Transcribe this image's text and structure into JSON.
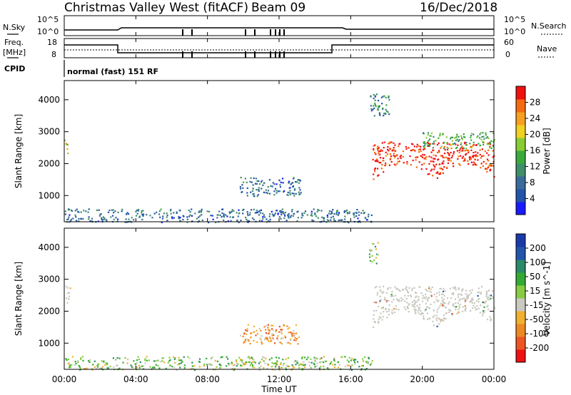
{
  "header": {
    "title": "Christmas Valley West (fitACF)",
    "beam": "Beam 09",
    "date": "16/Dec/2018"
  },
  "strip": {
    "nsky_label": "N.Sky",
    "nsky_tick_top": "10^5",
    "nsky_tick_bottom": "10^0",
    "nsearch_label": "N.Search",
    "nsearch_tick_top": "10^5",
    "nsearch_tick_bottom": "10^0",
    "freq_label_line1": "Freq.",
    "freq_label_line2": "[MHz]",
    "freq_tick_top": "18",
    "freq_tick_bottom": "8",
    "nave_label": "Nave",
    "nave_tick_top": "60",
    "nave_tick_bottom": "0",
    "cpid_label": "CPID",
    "cpid_text": "normal (fast) 151 RF"
  },
  "time_axis": {
    "label": "Time UT",
    "ticks": [
      "00:00",
      "04:00",
      "08:00",
      "12:00",
      "16:00",
      "20:00",
      "00:00"
    ]
  },
  "colors": {
    "power": [
      "#1a1aff",
      "#2255aa",
      "#3a6b9a",
      "#3f8f6a",
      "#3aaa3a",
      "#88cc33",
      "#f0d020",
      "#f7a020",
      "#f56a10",
      "#f01010"
    ],
    "velocity": [
      "#ee1111",
      "#ee5522",
      "#ee8822",
      "#f0b030",
      "#c9c9c0",
      "#88cc44",
      "#33aa33",
      "#2a8a6a",
      "#2255aa",
      "#1a3aaa"
    ]
  },
  "chart_data": [
    {
      "type": "heatmap",
      "name": "power",
      "xlabel": "",
      "ylabel": "Slant Range [km]",
      "ylim": [
        180,
        4600
      ],
      "yticks": [
        "1000",
        "2000",
        "3000",
        "4000"
      ],
      "colorbar_label": "Power [dB]",
      "colorbar_ticks": [
        "4",
        "8",
        "12",
        "16",
        "20",
        "24",
        "28"
      ],
      "x_range_hours": [
        0,
        24
      ],
      "regions": [
        {
          "t": [
            0,
            0.2
          ],
          "r": [
            2200,
            2800
          ],
          "value_db": 18
        },
        {
          "t": [
            0,
            17.2
          ],
          "r": [
            180,
            600
          ],
          "value_db": 6
        },
        {
          "t": [
            9.8,
            13.2
          ],
          "r": [
            1000,
            1600
          ],
          "value_db": 6
        },
        {
          "t": [
            17.2,
            24
          ],
          "r": [
            1300,
            2700
          ],
          "value_db": 28
        },
        {
          "t": [
            17.0,
            18.2
          ],
          "r": [
            3500,
            4200
          ],
          "value_db": 8
        },
        {
          "t": [
            20.0,
            24.0
          ],
          "r": [
            2500,
            3000
          ],
          "value_db": 12
        }
      ]
    },
    {
      "type": "heatmap",
      "name": "velocity",
      "xlabel": "Time UT",
      "ylabel": "Slant Range [km]",
      "ylim": [
        180,
        4600
      ],
      "yticks": [
        "1000",
        "2000",
        "3000",
        "4000"
      ],
      "colorbar_label": "Velocity [m s^-1]",
      "colorbar_ticks": [
        "200",
        "100",
        "50",
        "15",
        "-15",
        "-50",
        "-100",
        "-200"
      ],
      "x_range_hours": [
        0,
        24
      ],
      "regions": [
        {
          "t": [
            0,
            0.3
          ],
          "r": [
            2200,
            2800
          ],
          "value_ms": 0
        },
        {
          "t": [
            0,
            17.2
          ],
          "r": [
            180,
            600
          ],
          "value_ms": 30
        },
        {
          "t": [
            9.8,
            13.2
          ],
          "r": [
            1000,
            1600
          ],
          "value_ms": -60
        },
        {
          "t": [
            17.2,
            24
          ],
          "r": [
            1300,
            2800
          ],
          "value_ms": 0
        },
        {
          "t": [
            17.0,
            17.5
          ],
          "r": [
            3500,
            4200
          ],
          "value_ms": 40
        }
      ]
    }
  ]
}
